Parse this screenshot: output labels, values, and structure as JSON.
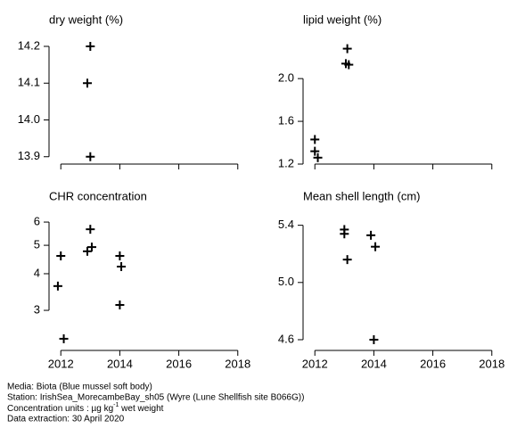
{
  "chart_data": [
    {
      "type": "scatter",
      "title": "dry weight (%)",
      "series": [
        {
          "color": "#000000",
          "x": [
            2013.0,
            2012.9,
            2013.0
          ],
          "values": [
            14.2,
            14.1,
            13.9
          ]
        }
      ],
      "xlim": [
        2011.6,
        2018.4
      ],
      "xticks": [
        2012,
        2014,
        2016,
        2018
      ],
      "xtick_labels": false,
      "ylim": [
        13.88,
        14.217
      ],
      "yticks": [
        {
          "value": 13.9,
          "label": "13.9"
        },
        {
          "value": 14.0,
          "label": "14.0"
        },
        {
          "value": 14.1,
          "label": "14.1"
        },
        {
          "value": 14.2,
          "label": "14.2"
        }
      ]
    },
    {
      "type": "scatter",
      "title": "lipid weight (%)",
      "series": [
        {
          "color": "#000000",
          "x": [
            2012.0,
            2012.0,
            2012.1,
            2013.1,
            2013.05,
            2013.15
          ],
          "values": [
            1.43,
            1.32,
            1.26,
            2.28,
            2.14,
            2.13
          ]
        }
      ],
      "xlim": [
        2011.6,
        2018.4
      ],
      "xticks": [
        2012,
        2014,
        2016,
        2018
      ],
      "xtick_labels": false,
      "ylim": [
        1.2,
        2.36
      ],
      "yticks": [
        1.2,
        1.6,
        {
          "value": 2.0,
          "label": "2.0"
        }
      ]
    },
    {
      "type": "scatter",
      "title": "CHR concentration",
      "ylog": true,
      "series": [
        {
          "color": "#000000",
          "x": [
            2012.0,
            2011.9,
            2012.1,
            2013.0,
            2012.9,
            2013.05,
            2014.0,
            2014.05,
            2014.0
          ],
          "values": [
            4.6,
            3.63,
            2.4,
            5.67,
            4.77,
            4.93,
            4.6,
            4.23,
            3.13
          ]
        }
      ],
      "xlim": [
        2011.6,
        2018.4
      ],
      "xticks": [
        2012,
        2014,
        2016,
        2018
      ],
      "xtick_labels": true,
      "ylim": [
        2.19,
        6.26
      ],
      "yticks": [
        3,
        4,
        5,
        6
      ]
    },
    {
      "type": "scatter",
      "title": "Mean shell length (cm)",
      "series": [
        {
          "color": "#000000",
          "x": [
            2013.0,
            2013.0,
            2013.1,
            2013.9,
            2014.05,
            2014.0
          ],
          "values": [
            5.37,
            5.34,
            5.16,
            5.33,
            5.25,
            4.6
          ]
        }
      ],
      "xlim": [
        2011.6,
        2018.4
      ],
      "xticks": [
        2012,
        2014,
        2016,
        2018
      ],
      "xtick_labels": true,
      "ylim": [
        4.525,
        5.46
      ],
      "yticks": [
        4.6,
        {
          "value": 5.0,
          "label": "5.0"
        },
        5.4
      ]
    }
  ],
  "footer": {
    "media": "Media: Biota (Blue mussel soft body)",
    "station": "Station: IrishSea_MorecambeBay_sh05 (Wyre (Lune Shellfish site B066G))",
    "units": {
      "before": "Concentration units : µg kg",
      "sup": "-1",
      "after": " wet weight"
    },
    "extraction": "Data extraction: 30 April 2020"
  }
}
